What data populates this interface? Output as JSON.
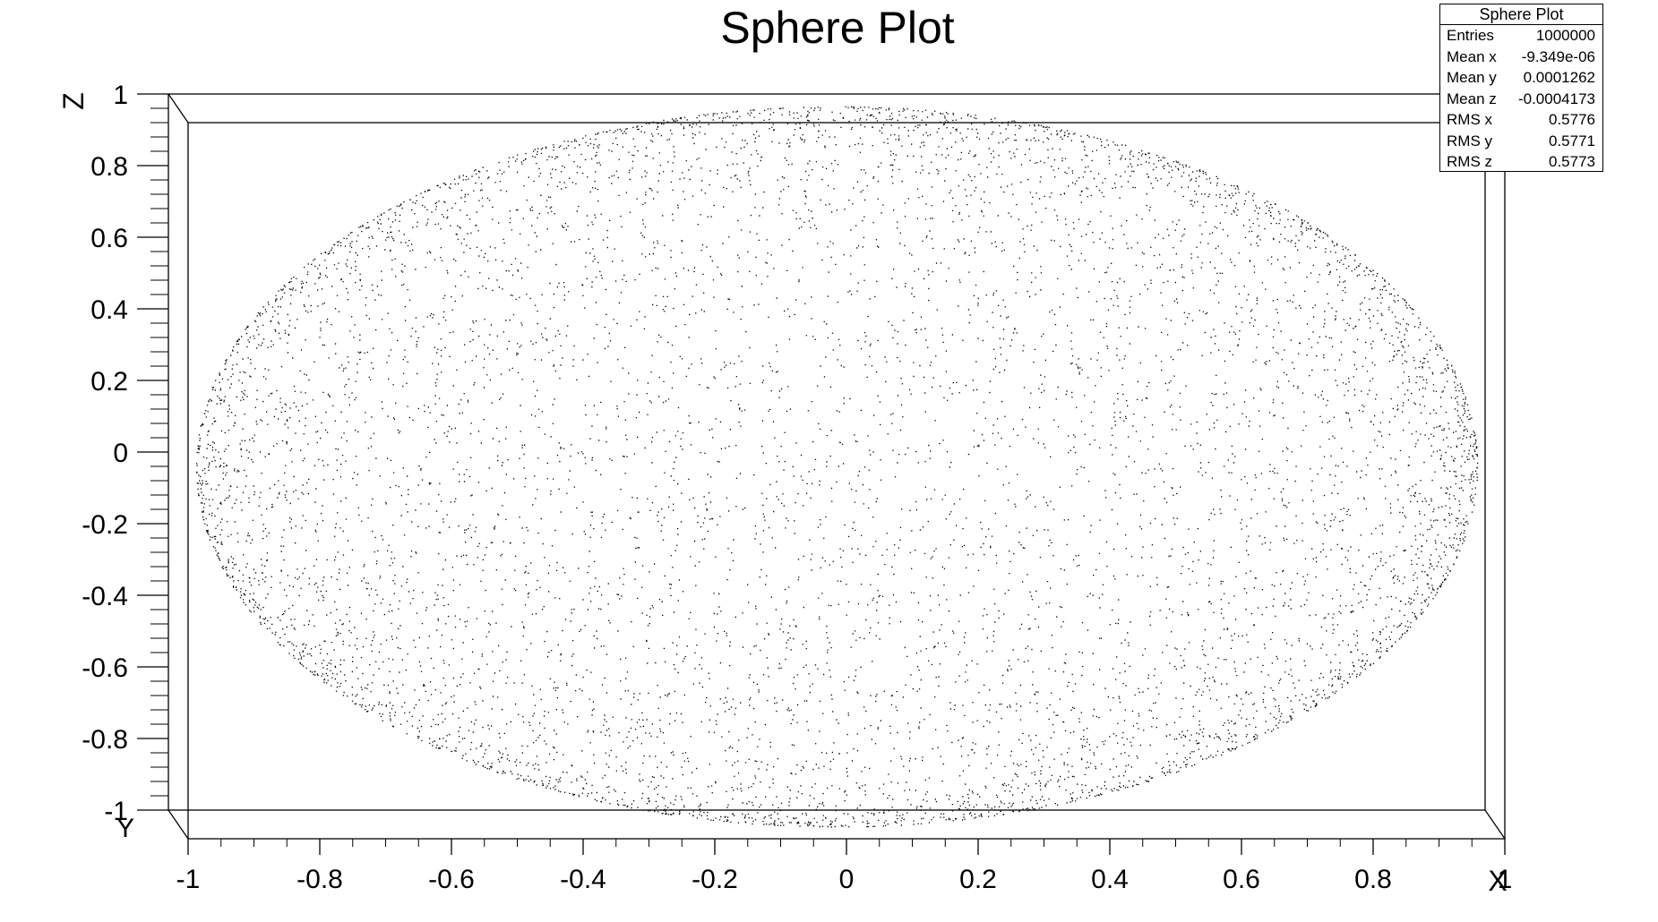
{
  "chart_data": {
    "type": "scatter",
    "title": "Sphere Plot",
    "xlabel": "X",
    "ylabel": "Z",
    "y_depth_label": "Y",
    "xlim": [
      -1,
      1
    ],
    "zlim": [
      -1,
      1
    ],
    "x_ticks": [
      "-1",
      "-0.8",
      "-0.6",
      "-0.4",
      "-0.2",
      "0",
      "0.2",
      "0.4",
      "0.6",
      "0.8",
      "1"
    ],
    "z_ticks": [
      "1",
      "0.8",
      "0.6",
      "0.4",
      "0.2",
      "0",
      "-0.2",
      "-0.4",
      "-0.6",
      "-0.8",
      "-1"
    ],
    "distribution": "uniform points on the unit sphere surface",
    "marker_color": "#000000",
    "stats": {
      "title": "Sphere Plot",
      "rows": [
        {
          "label": "Entries",
          "value": "1000000"
        },
        {
          "label": "Mean x",
          "value": "-9.349e-06"
        },
        {
          "label": "Mean y",
          "value": "0.0001262"
        },
        {
          "label": "Mean z",
          "value": "-0.0004173"
        },
        {
          "label": "RMS x",
          "value": "0.5776"
        },
        {
          "label": "RMS y",
          "value": "0.5771"
        },
        {
          "label": "RMS z",
          "value": "0.5773"
        }
      ]
    }
  }
}
